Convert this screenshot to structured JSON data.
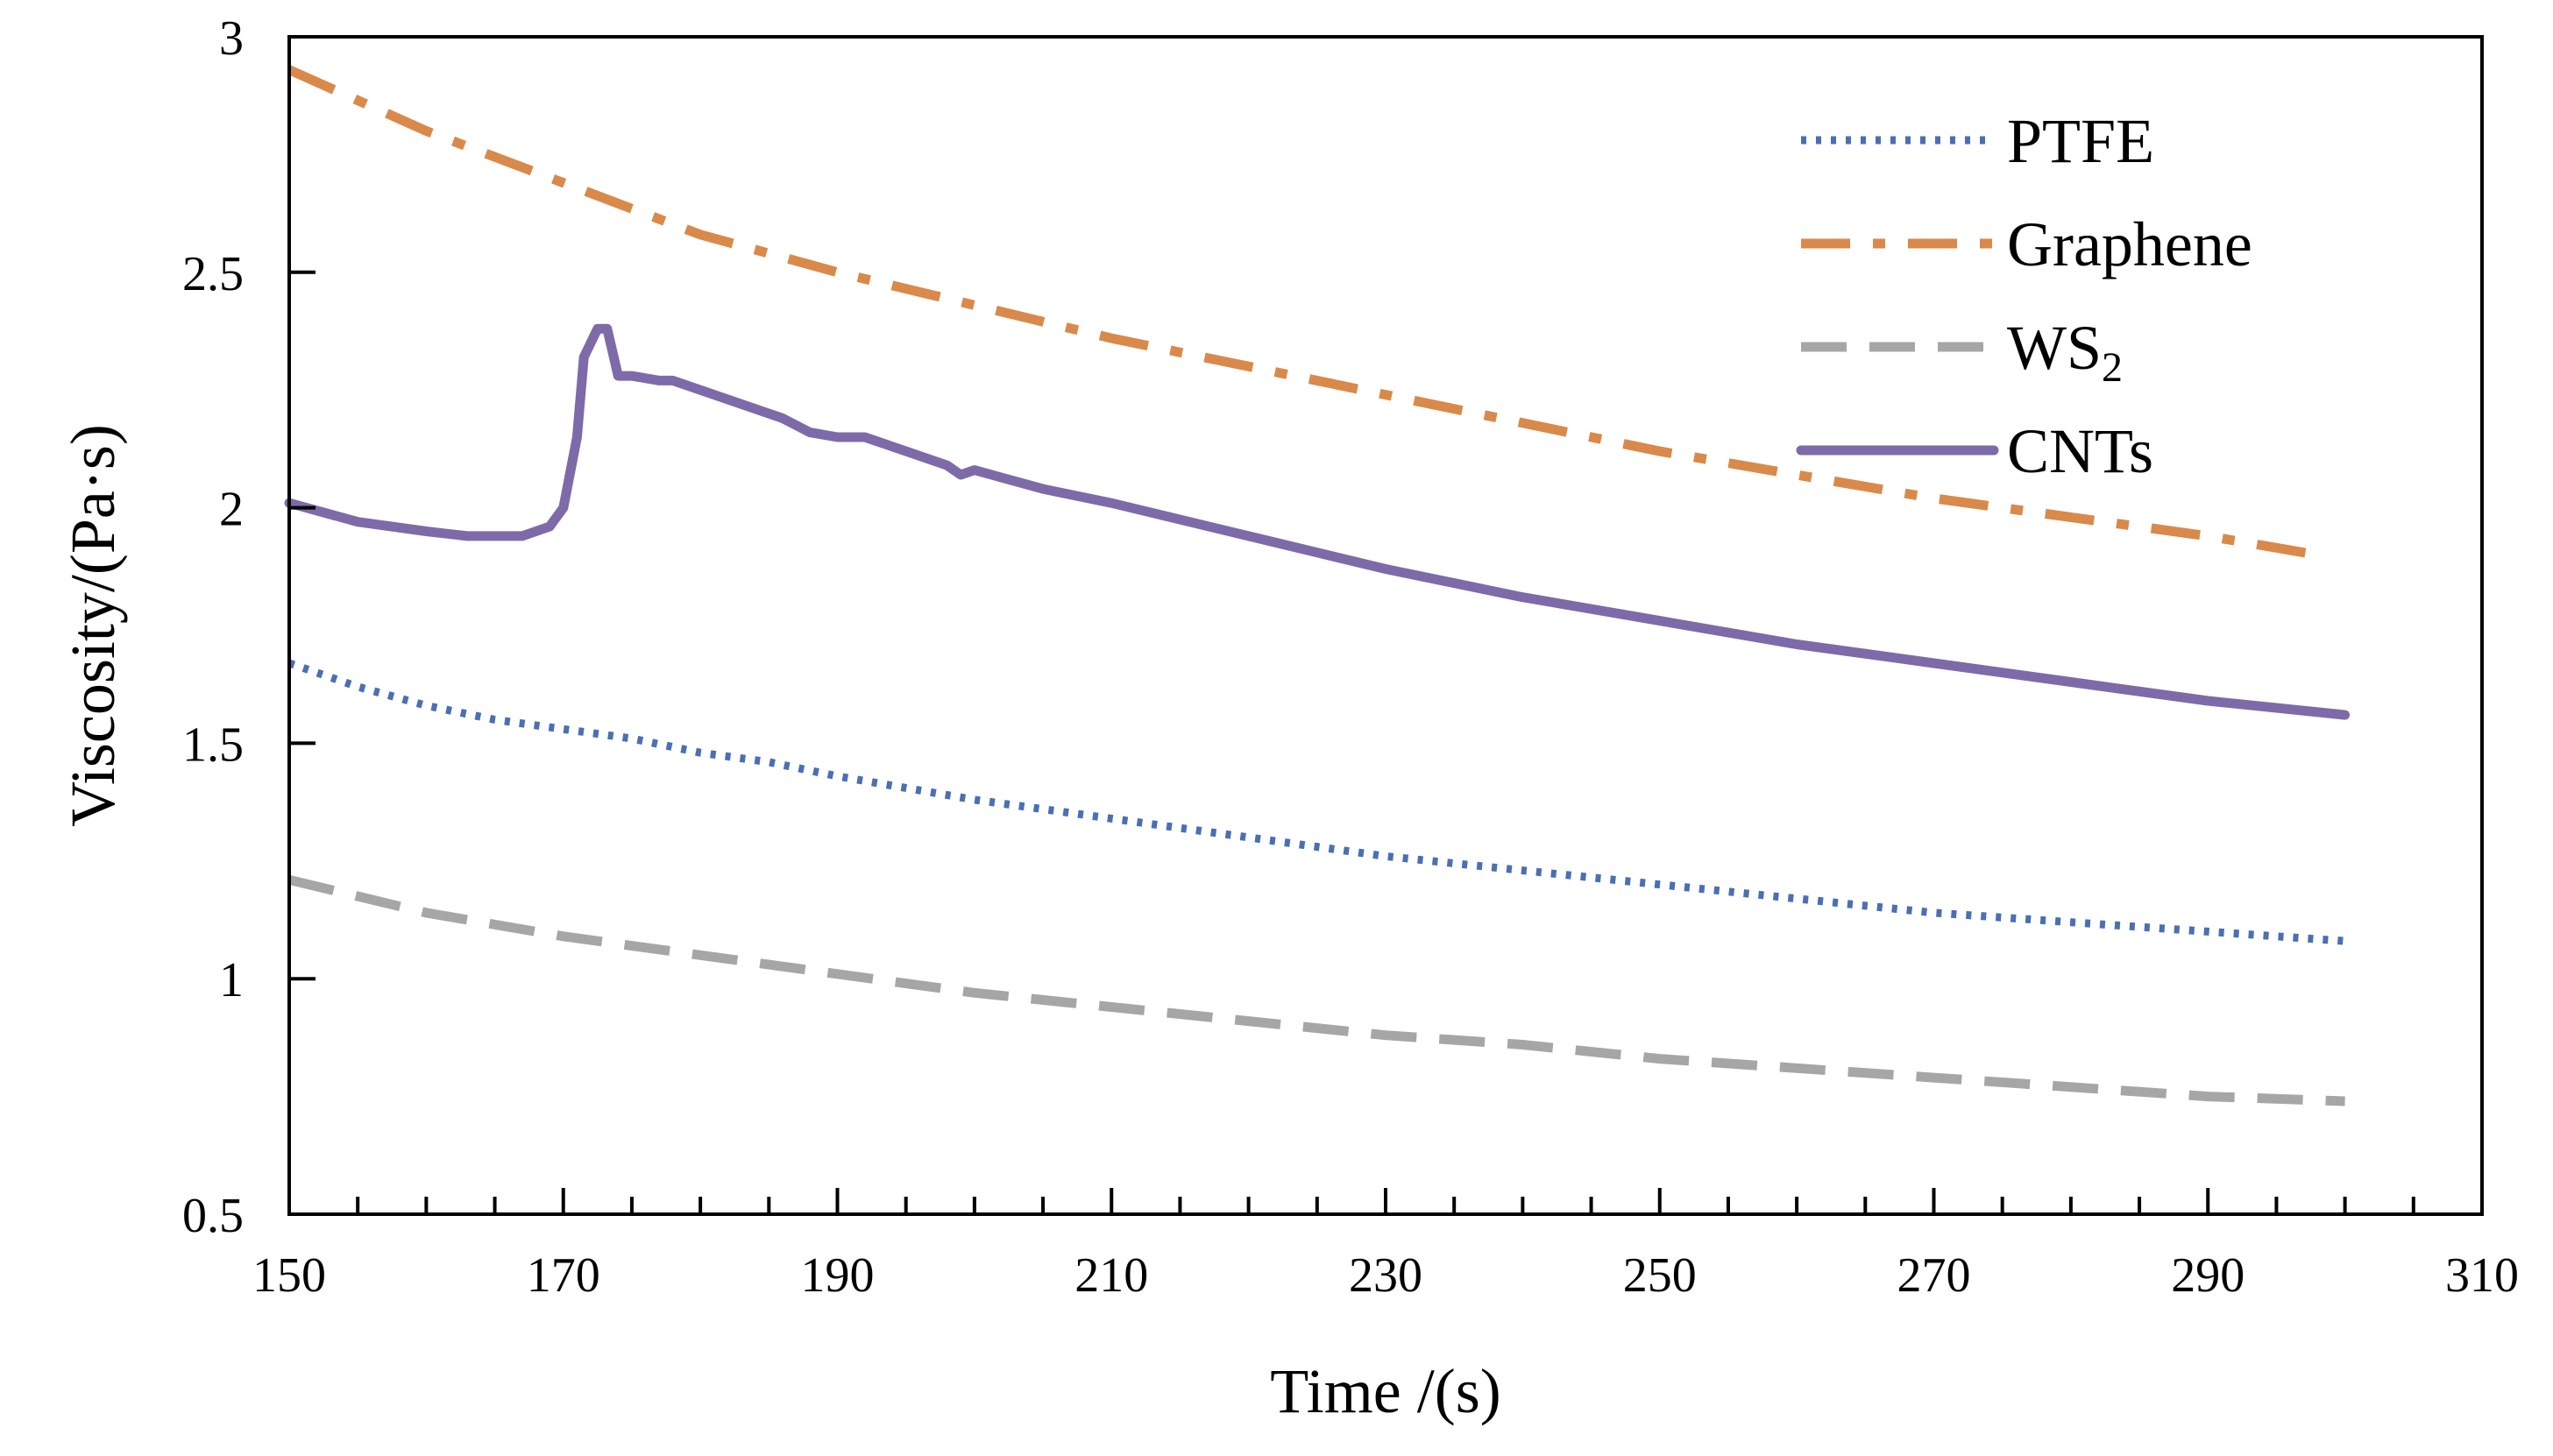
{
  "chart_data": {
    "type": "line",
    "xlabel": "Time /(s)",
    "ylabel": "Viscosity/(Pa·s)",
    "xlim": [
      150,
      310
    ],
    "ylim": [
      0.5,
      3
    ],
    "x_ticks": [
      150,
      170,
      190,
      210,
      230,
      250,
      270,
      290,
      310
    ],
    "x_tick_labels": [
      "150",
      "170",
      "190",
      "210",
      "230",
      "250",
      "270",
      "290",
      "310"
    ],
    "y_ticks": [
      0.5,
      1,
      1.5,
      2,
      2.5,
      3
    ],
    "y_tick_labels": [
      "0.5",
      "1",
      "1.5",
      "2",
      "2.5",
      "3"
    ],
    "x_minor_step": 5,
    "grid": false,
    "legend_position": "top-right",
    "series": [
      {
        "name": "PTFE",
        "label_main": "PTFE",
        "label_sub": "",
        "color": "#4a6fb3",
        "style": "dotted",
        "points": [
          [
            150,
            1.67
          ],
          [
            155,
            1.62
          ],
          [
            160,
            1.58
          ],
          [
            165,
            1.55
          ],
          [
            170,
            1.53
          ],
          [
            175,
            1.51
          ],
          [
            180,
            1.48
          ],
          [
            185,
            1.46
          ],
          [
            190,
            1.43
          ],
          [
            200,
            1.38
          ],
          [
            210,
            1.34
          ],
          [
            220,
            1.3
          ],
          [
            230,
            1.26
          ],
          [
            240,
            1.23
          ],
          [
            250,
            1.2
          ],
          [
            260,
            1.17
          ],
          [
            270,
            1.14
          ],
          [
            280,
            1.12
          ],
          [
            290,
            1.1
          ],
          [
            300,
            1.08
          ]
        ]
      },
      {
        "name": "Graphene",
        "label_main": "Graphene",
        "label_sub": "",
        "color": "#d9894a",
        "style": "dashdot",
        "points": [
          [
            150,
            2.93
          ],
          [
            160,
            2.8
          ],
          [
            170,
            2.69
          ],
          [
            180,
            2.58
          ],
          [
            190,
            2.5
          ],
          [
            200,
            2.43
          ],
          [
            210,
            2.36
          ],
          [
            220,
            2.3
          ],
          [
            230,
            2.24
          ],
          [
            240,
            2.18
          ],
          [
            250,
            2.12
          ],
          [
            260,
            2.07
          ],
          [
            270,
            2.02
          ],
          [
            280,
            1.98
          ],
          [
            290,
            1.94
          ],
          [
            298,
            1.9
          ]
        ]
      },
      {
        "name": "WS2",
        "label_main": "WS",
        "label_sub": "2",
        "color": "#a6a6a6",
        "style": "dashed",
        "points": [
          [
            150,
            1.21
          ],
          [
            160,
            1.14
          ],
          [
            170,
            1.09
          ],
          [
            180,
            1.05
          ],
          [
            190,
            1.01
          ],
          [
            200,
            0.97
          ],
          [
            210,
            0.94
          ],
          [
            220,
            0.91
          ],
          [
            230,
            0.88
          ],
          [
            240,
            0.86
          ],
          [
            250,
            0.83
          ],
          [
            260,
            0.81
          ],
          [
            270,
            0.79
          ],
          [
            280,
            0.77
          ],
          [
            290,
            0.75
          ],
          [
            300,
            0.74
          ]
        ]
      },
      {
        "name": "CNTs",
        "label_main": "CNTs",
        "label_sub": "",
        "color": "#7e6aa8",
        "style": "solid",
        "points": [
          [
            150,
            2.01
          ],
          [
            155,
            1.97
          ],
          [
            160,
            1.95
          ],
          [
            163,
            1.94
          ],
          [
            167,
            1.94
          ],
          [
            169,
            1.96
          ],
          [
            170,
            2.0
          ],
          [
            171,
            2.15
          ],
          [
            171.5,
            2.32
          ],
          [
            172.5,
            2.38
          ],
          [
            173.2,
            2.38
          ],
          [
            174,
            2.28
          ],
          [
            175,
            2.28
          ],
          [
            177,
            2.27
          ],
          [
            178,
            2.27
          ],
          [
            180,
            2.25
          ],
          [
            183,
            2.22
          ],
          [
            186,
            2.19
          ],
          [
            188,
            2.16
          ],
          [
            190,
            2.15
          ],
          [
            192,
            2.15
          ],
          [
            195,
            2.12
          ],
          [
            198,
            2.09
          ],
          [
            199,
            2.07
          ],
          [
            200,
            2.08
          ],
          [
            205,
            2.04
          ],
          [
            210,
            2.01
          ],
          [
            220,
            1.94
          ],
          [
            230,
            1.87
          ],
          [
            240,
            1.81
          ],
          [
            250,
            1.76
          ],
          [
            260,
            1.71
          ],
          [
            270,
            1.67
          ],
          [
            280,
            1.63
          ],
          [
            290,
            1.59
          ],
          [
            300,
            1.56
          ]
        ]
      }
    ]
  }
}
